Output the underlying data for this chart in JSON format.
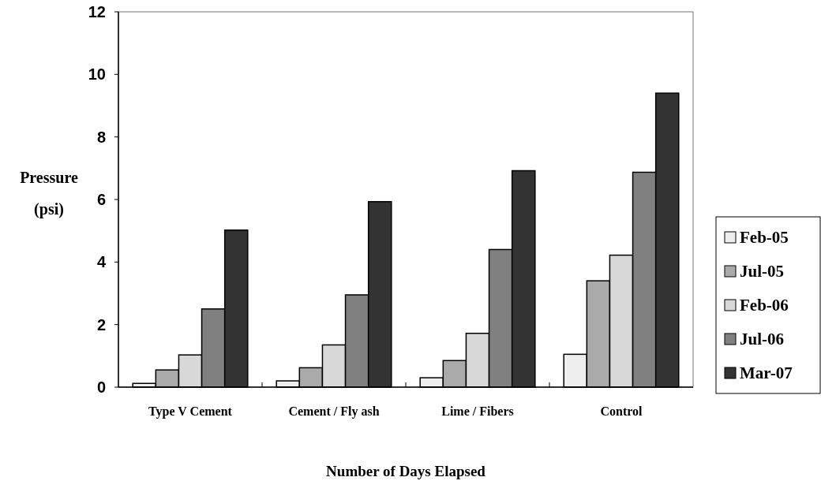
{
  "chart_data": {
    "type": "bar",
    "xlabel": "Number of Days Elapsed",
    "ylabel": "Pressure (psi)",
    "categories": [
      "Type V Cement",
      "Cement / Fly ash",
      "Lime / Fibers",
      "Control"
    ],
    "series": [
      {
        "name": "Feb-05",
        "color": "#eeeeee",
        "values": [
          0.12,
          0.2,
          0.3,
          1.05
        ]
      },
      {
        "name": "Jul-05",
        "color": "#aaaaaa",
        "values": [
          0.55,
          0.62,
          0.85,
          3.4
        ]
      },
      {
        "name": "Feb-06",
        "color": "#d8d8d8",
        "values": [
          1.03,
          1.35,
          1.72,
          4.22
        ]
      },
      {
        "name": "Jul-06",
        "color": "#808080",
        "values": [
          2.5,
          2.95,
          4.4,
          6.87
        ]
      },
      {
        "name": "Mar-07",
        "color": "#333333",
        "values": [
          5.02,
          5.93,
          6.92,
          9.4
        ]
      }
    ],
    "ylim": [
      0,
      12
    ],
    "yticks": [
      0,
      2,
      4,
      6,
      8,
      10,
      12
    ],
    "grid": false,
    "legend": "right"
  }
}
